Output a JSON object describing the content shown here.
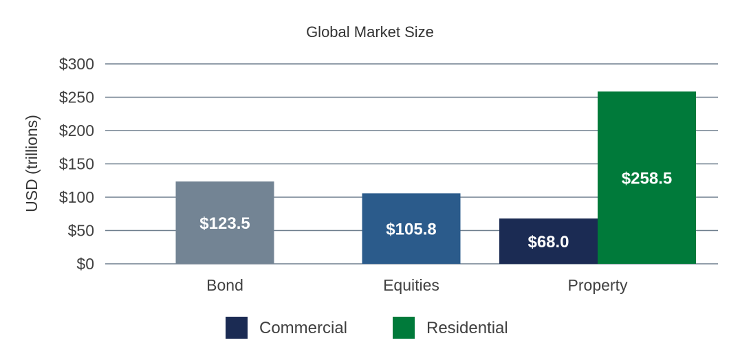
{
  "chart_data": {
    "type": "bar",
    "title": "Global Market Size",
    "ylabel": "USD (trillions)",
    "xlabel": "",
    "ylim": [
      0,
      300
    ],
    "yticks": [
      0,
      50,
      100,
      150,
      200,
      250,
      300
    ],
    "ytick_labels": [
      "$0",
      "$50",
      "$100",
      "$150",
      "$200",
      "$250",
      "$300"
    ],
    "categories": [
      "Bond",
      "Equities",
      "Property"
    ],
    "grid": true,
    "legend_position": "bottom",
    "bars": [
      {
        "category": "Bond",
        "value": 123.5,
        "label": "$123.5",
        "color": "#738494"
      },
      {
        "category": "Equities",
        "value": 105.8,
        "label": "$105.8",
        "color": "#2b5b8b"
      },
      {
        "category": "Property",
        "series": "Commercial",
        "value": 68.0,
        "label": "$68.0",
        "color": "#1b2b53"
      },
      {
        "category": "Property",
        "series": "Residential",
        "value": 258.5,
        "label": "$258.5",
        "color": "#007a3a"
      }
    ],
    "legend": [
      {
        "name": "Commercial",
        "color": "#1b2b53"
      },
      {
        "name": "Residential",
        "color": "#007a3a"
      }
    ]
  }
}
